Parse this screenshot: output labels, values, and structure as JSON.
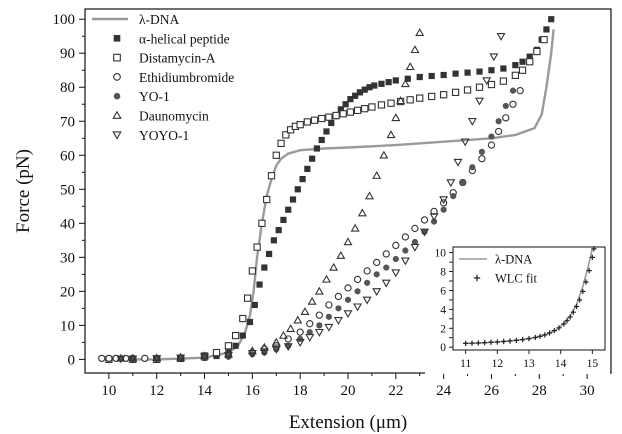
{
  "chart_data": {
    "type": "scatter",
    "xlabel": "Extension (μm)",
    "ylabel": "Force (pN)",
    "xlim": [
      9,
      31
    ],
    "ylim": [
      -4,
      103
    ],
    "xticks": [
      10,
      12,
      14,
      16,
      18,
      20,
      22,
      24,
      26,
      28,
      30
    ],
    "yticks": [
      0,
      10,
      20,
      30,
      40,
      50,
      60,
      70,
      80,
      90,
      100
    ],
    "legend_position": "top-left",
    "series": [
      {
        "name": "λ-DNA",
        "marker": "line",
        "color": "#9a9a9a",
        "x": [
          10.0,
          12.0,
          14.0,
          15.0,
          15.4,
          15.7,
          15.9,
          16.05,
          16.2,
          16.4,
          16.6,
          16.8,
          17.0,
          17.2,
          17.5,
          18.0,
          19.0,
          20.0,
          22.0,
          24.0,
          26.0,
          27.0,
          27.8,
          28.1,
          28.3,
          28.5,
          28.6
        ],
        "y": [
          0,
          0,
          0.5,
          2,
          4,
          8,
          13,
          20,
          30,
          40,
          48,
          53,
          57,
          59,
          60.5,
          61.5,
          62,
          62.3,
          63,
          64,
          65,
          66,
          68,
          72,
          80,
          90,
          97
        ]
      },
      {
        "name": "α-helical peptide",
        "marker": "filled-square",
        "color": "#333333",
        "x": [
          10.0,
          11.0,
          12.0,
          13.0,
          14.0,
          14.5,
          15.0,
          15.3,
          15.6,
          15.9,
          16.1,
          16.3,
          16.5,
          16.7,
          16.9,
          17.1,
          17.3,
          17.5,
          17.7,
          17.9,
          18.1,
          18.3,
          18.5,
          18.7,
          18.9,
          19.1,
          19.3,
          19.5,
          19.7,
          19.9,
          20.1,
          20.3,
          20.5,
          20.7,
          20.9,
          21.1,
          21.4,
          21.7,
          22.0,
          22.5,
          23.0,
          23.5,
          24.0,
          24.5,
          25.0,
          25.5,
          26.0,
          26.5,
          27.0,
          27.3,
          27.6,
          27.9,
          28.1,
          28.3,
          28.5
        ],
        "y": [
          0,
          0,
          0,
          0.2,
          0.5,
          1,
          2,
          4,
          7,
          11,
          16,
          22,
          27,
          31,
          35,
          38,
          41,
          44,
          47,
          50,
          53,
          56,
          59,
          62,
          64.5,
          67,
          69.5,
          71.5,
          73.5,
          75,
          76.5,
          77.5,
          78.5,
          79.3,
          80,
          80.5,
          81,
          81.5,
          82,
          82.5,
          83,
          83.3,
          83.6,
          84,
          84.3,
          84.6,
          85,
          85.5,
          86.5,
          87.5,
          89,
          91,
          94,
          97,
          100
        ]
      },
      {
        "name": "Distamycin-A",
        "marker": "open-square",
        "color": "#333333",
        "x": [
          10.0,
          11.0,
          12.0,
          13.0,
          14.0,
          14.5,
          15.0,
          15.3,
          15.6,
          15.8,
          16.0,
          16.2,
          16.4,
          16.6,
          16.8,
          17.0,
          17.2,
          17.4,
          17.6,
          17.8,
          18.0,
          18.3,
          18.6,
          18.9,
          19.2,
          19.5,
          19.8,
          20.1,
          20.4,
          20.7,
          21.0,
          21.4,
          21.8,
          22.2,
          22.6,
          23.0,
          23.5,
          24.0,
          24.5,
          25.0,
          25.5,
          26.0,
          26.5,
          27.0,
          27.3,
          27.6,
          27.9,
          28.2
        ],
        "y": [
          0,
          0,
          0,
          0.3,
          1,
          2,
          4,
          7,
          12,
          18,
          26,
          33,
          40,
          47,
          54,
          60,
          63.5,
          66,
          67.5,
          68.5,
          69,
          69.8,
          70.3,
          70.8,
          71.2,
          71.7,
          72.2,
          72.7,
          73.2,
          73.7,
          74.2,
          74.8,
          75.3,
          75.8,
          76.3,
          76.8,
          77.3,
          77.8,
          78.5,
          79.2,
          80,
          80.8,
          81.8,
          83.5,
          85,
          87.5,
          90.5,
          94
        ]
      },
      {
        "name": "Ethidiumbromide",
        "marker": "open-circle",
        "color": "#333333",
        "x": [
          9.7,
          10.0,
          10.3,
          10.7,
          11.0,
          11.5,
          12.0,
          13.0,
          14.0,
          15.0,
          16.0,
          16.5,
          17.0,
          17.5,
          18.0,
          18.4,
          18.8,
          19.2,
          19.6,
          20.0,
          20.4,
          20.8,
          21.2,
          21.6,
          22.0,
          22.4,
          22.8,
          23.2,
          23.6,
          24.0,
          24.4,
          24.8,
          25.2,
          25.6,
          26.0,
          26.3,
          26.6,
          26.9,
          27.2
        ],
        "y": [
          0.3,
          0.3,
          0.3,
          0.3,
          0.3,
          0.3,
          0.3,
          0.4,
          0.6,
          1,
          2,
          3,
          4,
          6,
          8,
          10.5,
          13,
          16,
          18.5,
          21,
          23.5,
          26,
          28.5,
          31,
          33.5,
          36,
          38.5,
          41,
          43.5,
          46,
          49,
          52,
          55.5,
          59,
          63,
          67,
          71,
          75,
          79
        ]
      },
      {
        "name": "YO-1",
        "marker": "filled-circle",
        "color": "#555555",
        "x": [
          10.5,
          11.0,
          12.0,
          13.0,
          14.0,
          15.0,
          16.0,
          16.5,
          17.0,
          17.5,
          18.0,
          18.4,
          18.8,
          19.2,
          19.6,
          20.0,
          20.4,
          20.8,
          21.2,
          21.6,
          22.0,
          22.4,
          22.8,
          23.2,
          23.6,
          24.0,
          24.4,
          24.8,
          25.2,
          25.6,
          26.0,
          26.3,
          26.6,
          26.9
        ],
        "y": [
          0.3,
          0.3,
          0.3,
          0.4,
          0.5,
          0.8,
          1.5,
          2,
          3,
          4,
          6,
          8,
          10,
          12.5,
          15,
          17.5,
          20,
          22.5,
          25,
          27,
          29.5,
          32,
          34.5,
          37.5,
          40.5,
          44,
          48,
          52,
          56.5,
          61,
          65.5,
          70,
          74.5,
          79
        ]
      },
      {
        "name": "Daunomycin",
        "marker": "open-triangle-up",
        "color": "#333333",
        "x": [
          10.5,
          11.0,
          12.0,
          13.0,
          14.0,
          15.0,
          16.0,
          16.5,
          17.0,
          17.3,
          17.6,
          17.9,
          18.2,
          18.5,
          18.8,
          19.1,
          19.4,
          19.7,
          20.0,
          20.3,
          20.6,
          20.9,
          21.2,
          21.5,
          21.8,
          22.0,
          22.2,
          22.4,
          22.6,
          22.8,
          23.0
        ],
        "y": [
          0.3,
          0.3,
          0.4,
          0.6,
          1,
          1.5,
          2.5,
          3.5,
          5,
          7,
          9,
          11.5,
          14,
          17,
          20,
          23.5,
          27,
          30.5,
          34.5,
          38.5,
          43,
          48,
          54,
          60,
          66,
          71,
          76,
          81,
          86,
          91,
          96
        ]
      },
      {
        "name": "YOYO-1",
        "marker": "open-triangle-down",
        "color": "#333333",
        "x": [
          10.5,
          11.0,
          12.0,
          13.0,
          14.0,
          15.0,
          16.0,
          16.5,
          17.0,
          17.5,
          18.0,
          18.4,
          18.8,
          19.2,
          19.6,
          20.0,
          20.4,
          20.8,
          21.2,
          21.6,
          22.0,
          22.4,
          22.8,
          23.2,
          23.6,
          24.0,
          24.3,
          24.6,
          24.9,
          25.2,
          25.5,
          25.8,
          26.1,
          26.4
        ],
        "y": [
          0.2,
          0.2,
          0.3,
          0.5,
          0.8,
          1.2,
          1.8,
          2.3,
          3,
          3.8,
          5,
          6.5,
          8,
          9.5,
          11.5,
          13.5,
          15.5,
          17.5,
          20,
          22.5,
          25.5,
          29,
          33,
          37.5,
          42,
          47,
          52,
          58,
          64,
          70,
          76,
          82,
          89,
          95
        ]
      }
    ],
    "inset": {
      "type": "line+scatter",
      "xlim": [
        10.6,
        15.4
      ],
      "ylim": [
        -0.3,
        10.6
      ],
      "xticks": [
        11,
        12,
        13,
        14,
        15
      ],
      "yticks": [
        0,
        1,
        2,
        3,
        4,
        5,
        6,
        7,
        8,
        9,
        10
      ],
      "legend_position": "top-left",
      "series": [
        {
          "name": "λ-DNA",
          "marker": "line",
          "color": "#9a9a9a",
          "x": [
            11.0,
            11.5,
            12.0,
            12.5,
            13.0,
            13.3,
            13.6,
            13.9,
            14.1,
            14.3,
            14.5,
            14.7,
            14.85,
            15.0
          ],
          "y": [
            0.4,
            0.45,
            0.55,
            0.7,
            0.9,
            1.1,
            1.4,
            1.9,
            2.5,
            3.3,
            4.5,
            6.4,
            8.3,
            10.4
          ]
        },
        {
          "name": "WLC fit",
          "marker": "plus",
          "color": "#222222",
          "x": [
            11.0,
            11.2,
            11.4,
            11.6,
            11.8,
            12.0,
            12.2,
            12.4,
            12.6,
            12.8,
            13.0,
            13.2,
            13.35,
            13.5,
            13.65,
            13.8,
            13.95,
            14.1,
            14.2,
            14.3,
            14.4,
            14.5,
            14.6,
            14.7,
            14.8,
            14.9,
            15.0,
            15.05
          ],
          "y": [
            0.4,
            0.42,
            0.45,
            0.48,
            0.52,
            0.55,
            0.6,
            0.65,
            0.72,
            0.8,
            0.9,
            1.02,
            1.15,
            1.3,
            1.5,
            1.75,
            2.05,
            2.45,
            2.8,
            3.2,
            3.7,
            4.3,
            5.0,
            5.9,
            6.9,
            8.1,
            9.5,
            10.4
          ]
        }
      ]
    }
  }
}
